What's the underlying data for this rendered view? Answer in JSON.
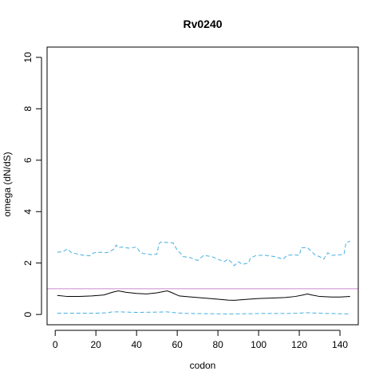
{
  "chart_data": {
    "type": "line",
    "title": "Rv0240",
    "xlabel": "codon",
    "ylabel": "omega (dN/dS)",
    "xlim": [
      -4,
      149
    ],
    "ylim": [
      -0.4,
      10.4
    ],
    "x_ticks": [
      0,
      20,
      40,
      60,
      80,
      100,
      120,
      140
    ],
    "y_ticks": [
      0,
      2,
      4,
      6,
      8,
      10
    ],
    "grid": false,
    "reference_line": {
      "y": 1,
      "color": "#cc88cc"
    },
    "series": [
      {
        "role": "estimate",
        "color": "#000000",
        "dash": "solid",
        "points": [
          [
            1,
            0.74
          ],
          [
            6,
            0.7
          ],
          [
            12,
            0.7
          ],
          [
            18,
            0.72
          ],
          [
            24,
            0.76
          ],
          [
            28,
            0.86
          ],
          [
            31,
            0.92
          ],
          [
            35,
            0.86
          ],
          [
            40,
            0.82
          ],
          [
            45,
            0.8
          ],
          [
            50,
            0.84
          ],
          [
            55,
            0.92
          ],
          [
            57,
            0.86
          ],
          [
            61,
            0.72
          ],
          [
            67,
            0.68
          ],
          [
            73,
            0.64
          ],
          [
            79,
            0.6
          ],
          [
            85,
            0.56
          ],
          [
            88,
            0.55
          ],
          [
            93,
            0.58
          ],
          [
            100,
            0.62
          ],
          [
            107,
            0.64
          ],
          [
            113,
            0.66
          ],
          [
            118,
            0.7
          ],
          [
            122,
            0.76
          ],
          [
            124,
            0.8
          ],
          [
            126,
            0.76
          ],
          [
            130,
            0.7
          ],
          [
            136,
            0.68
          ],
          [
            140,
            0.68
          ],
          [
            145,
            0.7
          ]
        ]
      },
      {
        "role": "upper bound",
        "color": "#45b0e0",
        "dash": "dashed",
        "points": [
          [
            1,
            2.42
          ],
          [
            4,
            2.45
          ],
          [
            6,
            2.55
          ],
          [
            8,
            2.4
          ],
          [
            11,
            2.35
          ],
          [
            14,
            2.3
          ],
          [
            17,
            2.28
          ],
          [
            19,
            2.4
          ],
          [
            22,
            2.42
          ],
          [
            25,
            2.4
          ],
          [
            27,
            2.45
          ],
          [
            29,
            2.55
          ],
          [
            30,
            2.7
          ],
          [
            31,
            2.6
          ],
          [
            33,
            2.62
          ],
          [
            36,
            2.58
          ],
          [
            40,
            2.62
          ],
          [
            42,
            2.4
          ],
          [
            45,
            2.35
          ],
          [
            48,
            2.32
          ],
          [
            50,
            2.35
          ],
          [
            51,
            2.75
          ],
          [
            52,
            2.82
          ],
          [
            55,
            2.8
          ],
          [
            58,
            2.78
          ],
          [
            60,
            2.5
          ],
          [
            62,
            2.35
          ],
          [
            63,
            2.25
          ],
          [
            66,
            2.22
          ],
          [
            70,
            2.1
          ],
          [
            73,
            2.3
          ],
          [
            77,
            2.25
          ],
          [
            80,
            2.15
          ],
          [
            83,
            2.05
          ],
          [
            85,
            2.15
          ],
          [
            87,
            2.0
          ],
          [
            88,
            1.9
          ],
          [
            90,
            2.05
          ],
          [
            92,
            1.95
          ],
          [
            95,
            2.0
          ],
          [
            96,
            2.2
          ],
          [
            99,
            2.3
          ],
          [
            103,
            2.3
          ],
          [
            108,
            2.25
          ],
          [
            112,
            2.15
          ],
          [
            114,
            2.3
          ],
          [
            117,
            2.32
          ],
          [
            120,
            2.3
          ],
          [
            121,
            2.6
          ],
          [
            124,
            2.6
          ],
          [
            126,
            2.45
          ],
          [
            128,
            2.3
          ],
          [
            130,
            2.25
          ],
          [
            132,
            2.15
          ],
          [
            134,
            2.4
          ],
          [
            136,
            2.3
          ],
          [
            140,
            2.32
          ],
          [
            142,
            2.35
          ],
          [
            143,
            2.8
          ],
          [
            145,
            2.85
          ]
        ]
      },
      {
        "role": "lower bound",
        "color": "#45b0e0",
        "dash": "dashed",
        "points": [
          [
            1,
            0.05
          ],
          [
            10,
            0.05
          ],
          [
            20,
            0.05
          ],
          [
            25,
            0.06
          ],
          [
            28,
            0.1
          ],
          [
            32,
            0.1
          ],
          [
            40,
            0.08
          ],
          [
            48,
            0.09
          ],
          [
            55,
            0.1
          ],
          [
            60,
            0.06
          ],
          [
            65,
            0.04
          ],
          [
            75,
            0.03
          ],
          [
            85,
            0.02
          ],
          [
            95,
            0.03
          ],
          [
            105,
            0.04
          ],
          [
            115,
            0.04
          ],
          [
            120,
            0.05
          ],
          [
            123,
            0.07
          ],
          [
            126,
            0.06
          ],
          [
            132,
            0.04
          ],
          [
            140,
            0.03
          ],
          [
            145,
            0.02
          ]
        ]
      }
    ]
  }
}
